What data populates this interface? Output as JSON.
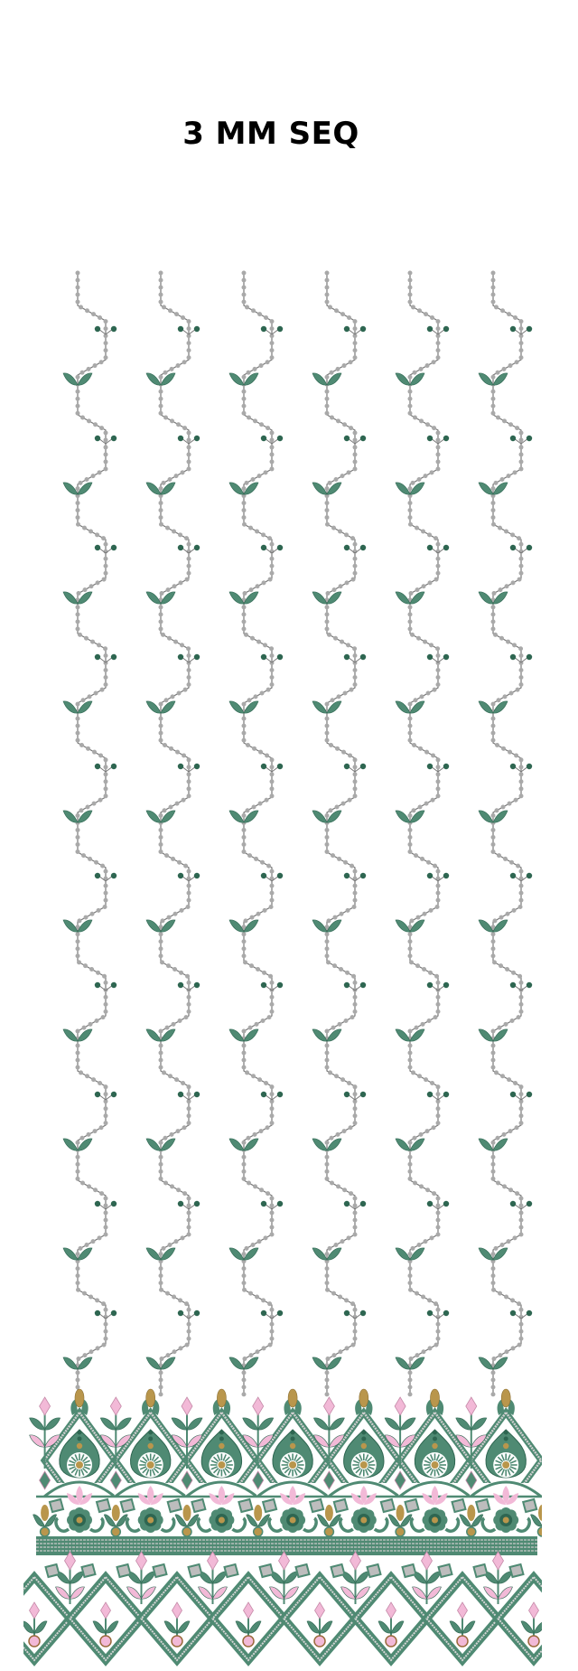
{
  "title": "3 MM SEQ",
  "colors": {
    "green": "#4f8a73",
    "dark_green": "#2e6651",
    "pink": "#f2b9d7",
    "gold": "#b9964c",
    "bead": "#a9a9a9",
    "thread": "#777777",
    "brown": "#9a6a3a"
  }
}
